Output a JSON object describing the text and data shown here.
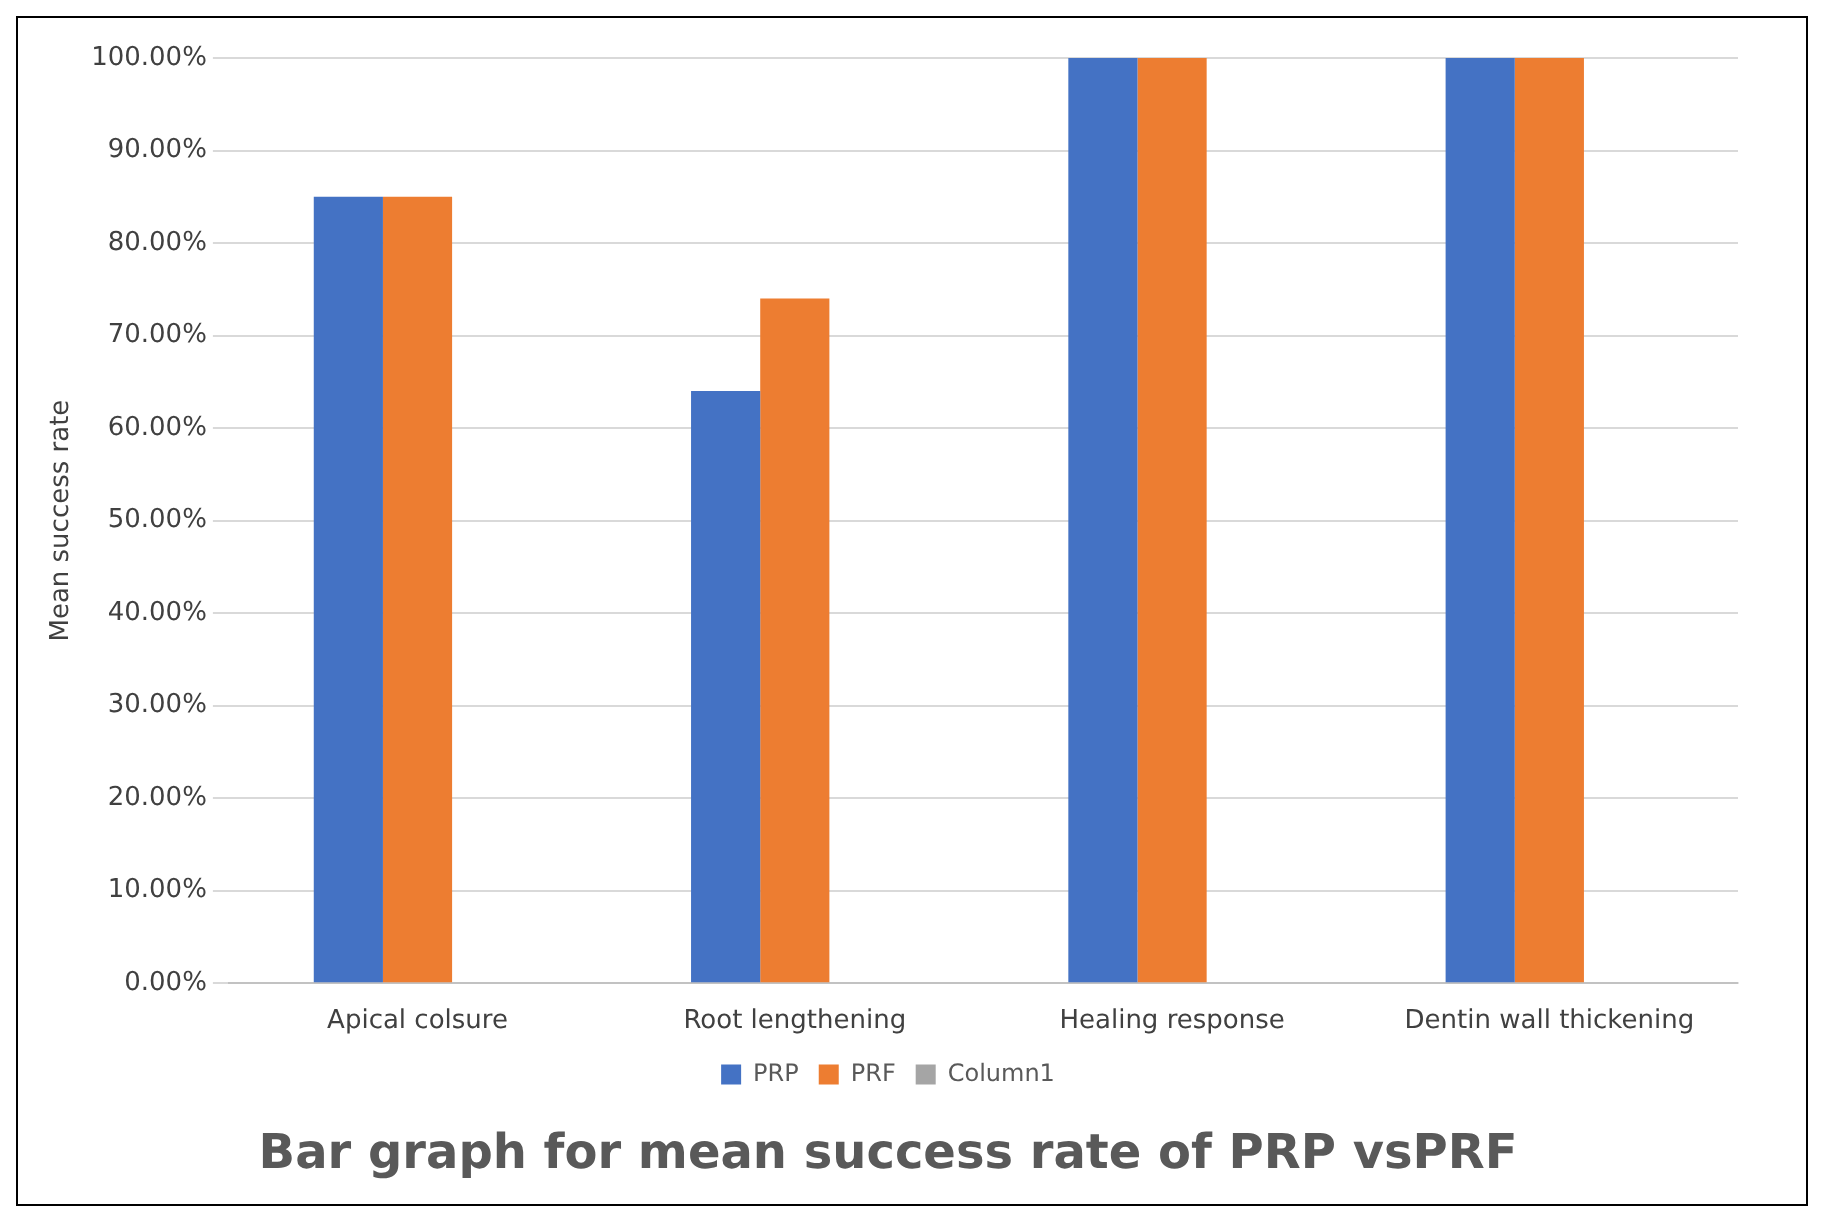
{
  "chart_data": {
    "type": "bar",
    "title": "Bar graph for mean success rate of PRP vsPRF",
    "ylabel": "Mean success rate",
    "categories": [
      "Apical colsure",
      "Root lengthening",
      "Healing response",
      "Dentin wall thickening"
    ],
    "series": [
      {
        "name": "PRP",
        "color": "#4472c4",
        "values": [
          85,
          64,
          100,
          100
        ]
      },
      {
        "name": "PRF",
        "color": "#ed7d31",
        "values": [
          85,
          74,
          100,
          100
        ]
      },
      {
        "name": "Column1",
        "color": "#a5a5a5",
        "values": [
          null,
          null,
          null,
          null
        ]
      }
    ],
    "ylim": [
      0,
      100
    ],
    "yticks": [
      {
        "value": 0,
        "label": "0.00%"
      },
      {
        "value": 10,
        "label": "10.00%"
      },
      {
        "value": 20,
        "label": "20.00%"
      },
      {
        "value": 30,
        "label": "30.00%"
      },
      {
        "value": 40,
        "label": "40.00%"
      },
      {
        "value": 50,
        "label": "50.00%"
      },
      {
        "value": 60,
        "label": "60.00%"
      },
      {
        "value": 70,
        "label": "70.00%"
      },
      {
        "value": 80,
        "label": "80.00%"
      },
      {
        "value": 90,
        "label": "90.00%"
      },
      {
        "value": 100,
        "label": "100.00%"
      }
    ],
    "grid": "y",
    "legend": "bottom"
  }
}
